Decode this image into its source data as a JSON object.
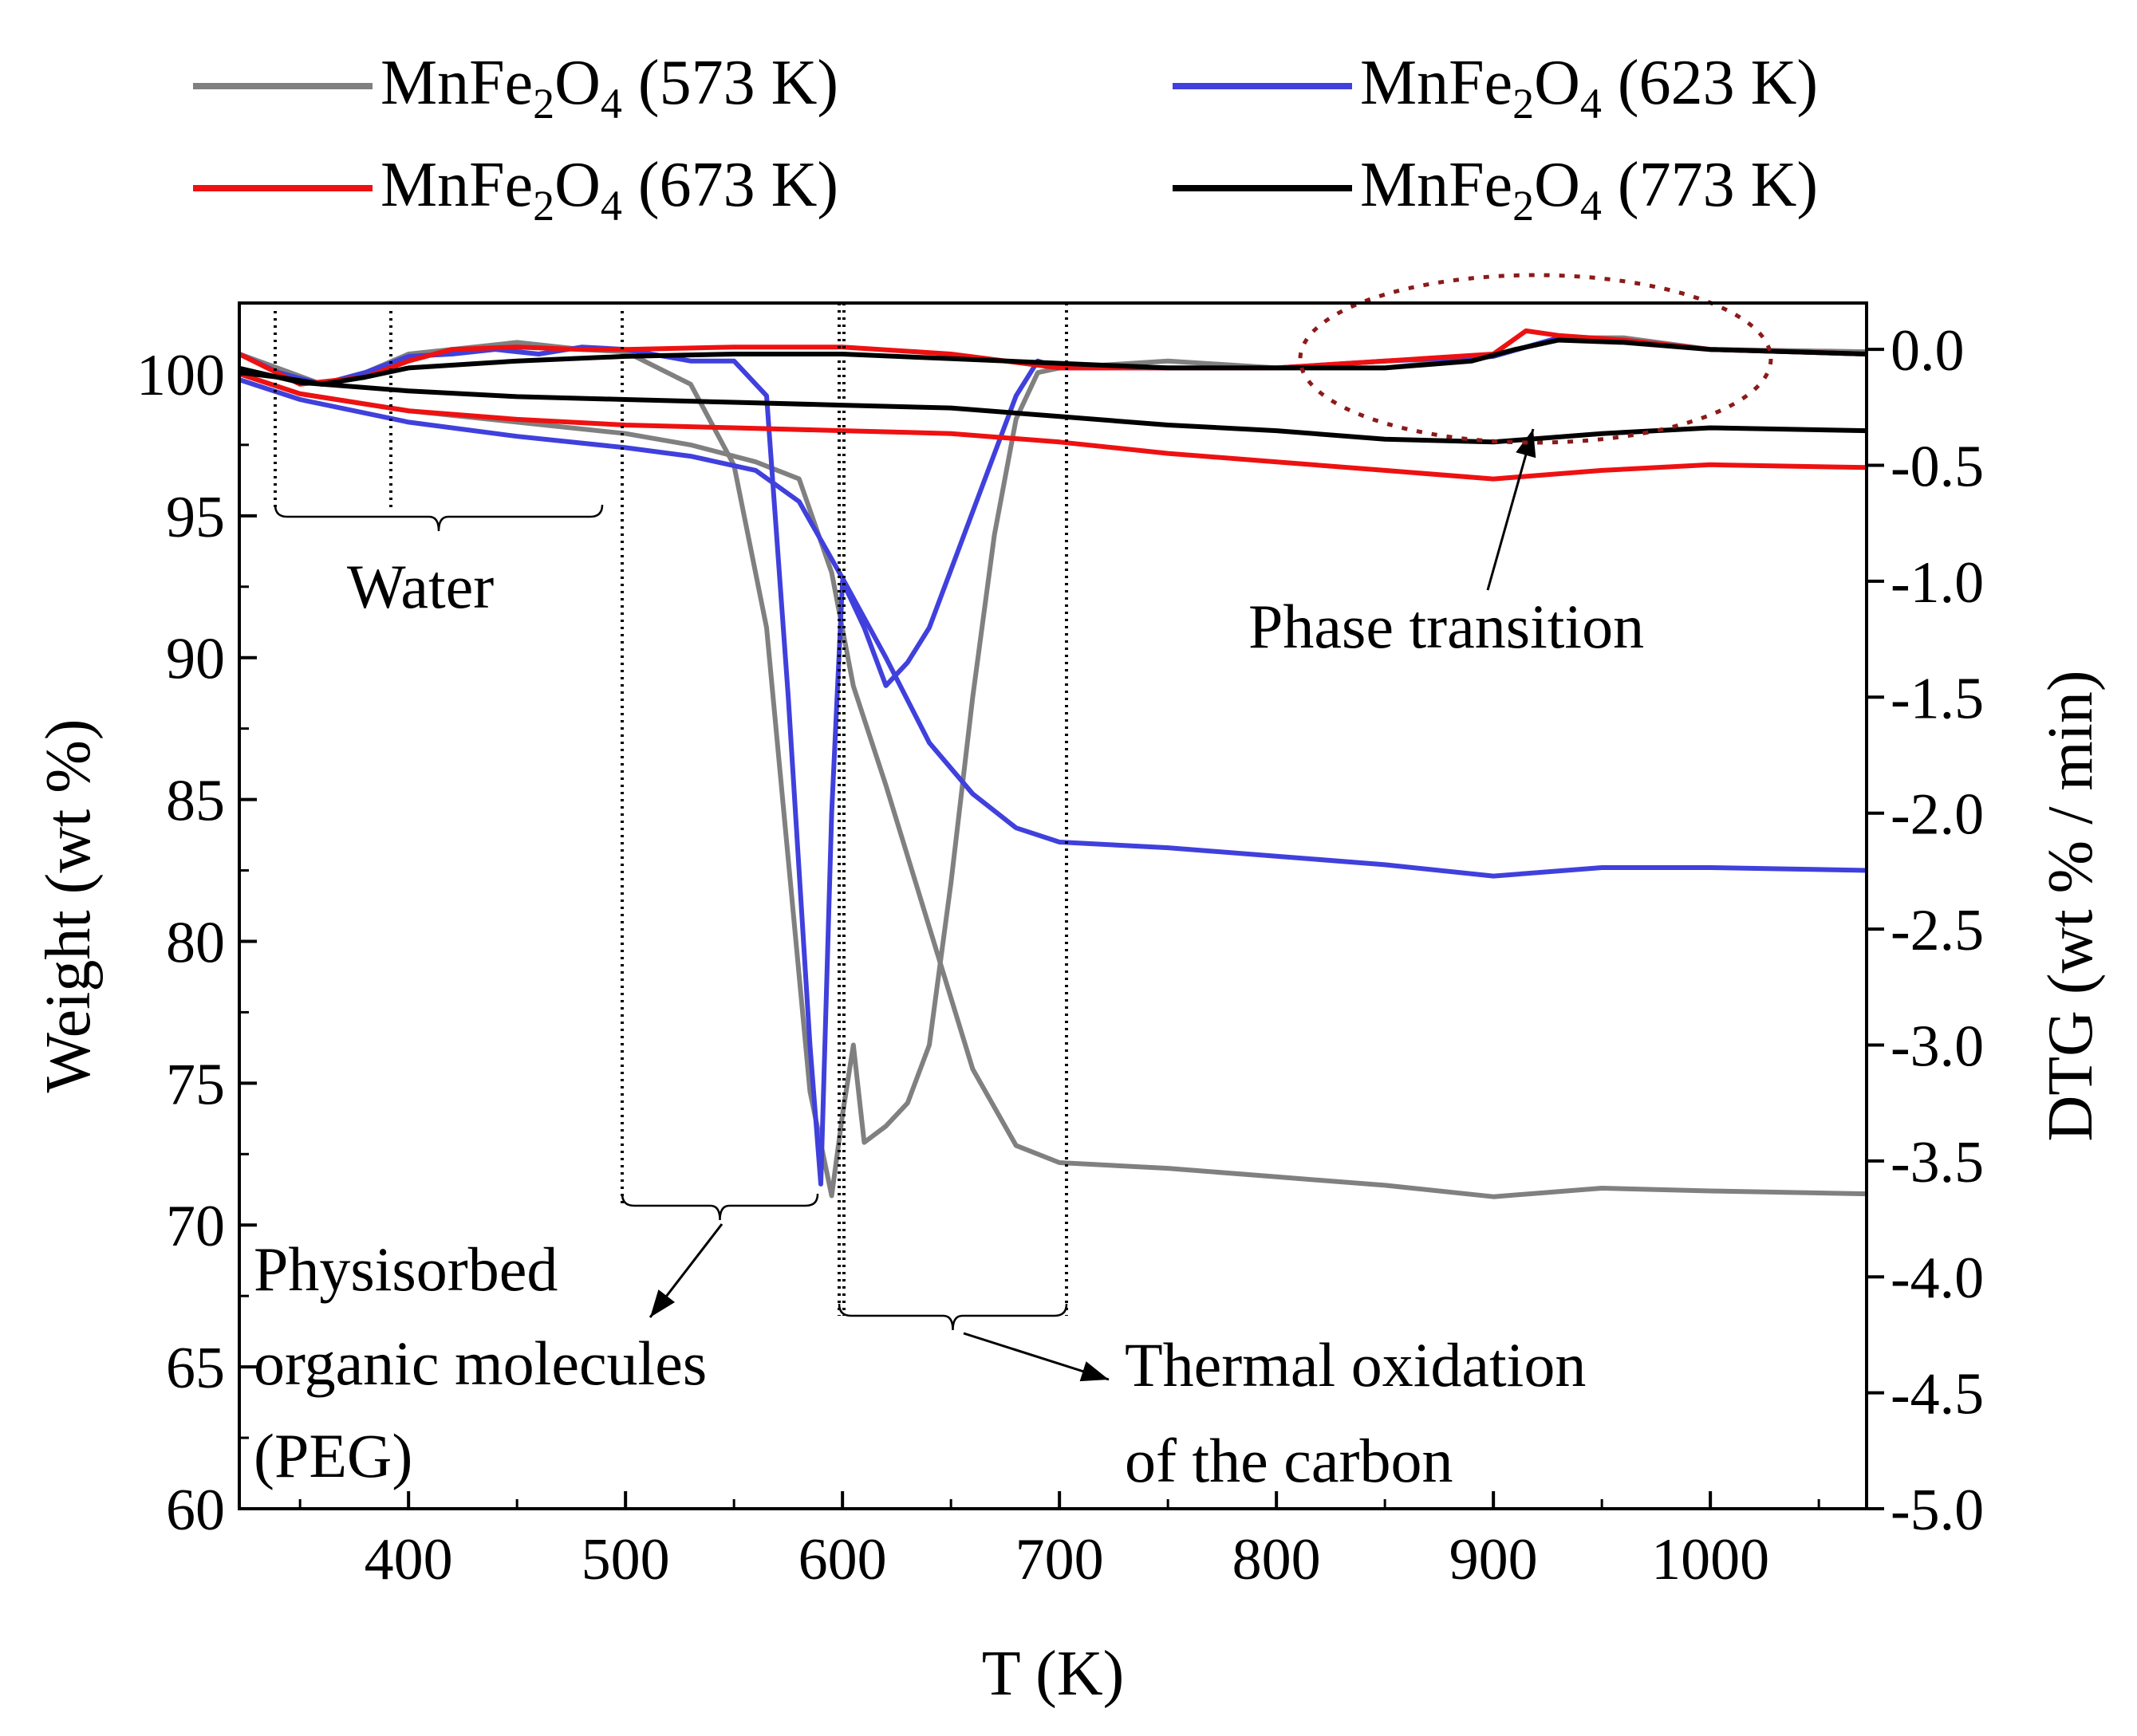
{
  "chart_data": {
    "type": "line",
    "xlabel": "T (K)",
    "ylabel_left": "Weight (wt %)",
    "ylabel_right": "DTG (wt % / min)",
    "xlim": [
      322,
      1072
    ],
    "ylim_left": [
      60,
      102.5
    ],
    "ylim_right": [
      -5.0,
      0.2
    ],
    "x_ticks": [
      400,
      500,
      600,
      700,
      800,
      900,
      1000
    ],
    "y_left_ticks": [
      60,
      65,
      70,
      75,
      80,
      85,
      90,
      95,
      100
    ],
    "y_right_ticks": [
      -5.0,
      -4.5,
      -4.0,
      -3.5,
      -3.0,
      -2.5,
      -2.0,
      -1.5,
      -1.0,
      -0.5,
      0.0
    ],
    "y_right_tick_labels": [
      "-5.0",
      "-4.5",
      "-4.0",
      "-3.5",
      "-3.0",
      "-2.5",
      "-2.0",
      "-1.5",
      "-1.0",
      "-0.5",
      "0.0"
    ],
    "grid": false,
    "legend_position": "top",
    "series": [
      {
        "id": "s573",
        "name_prefix": "MnFe",
        "sub1": "2",
        "name_mid": "O",
        "sub2": "4",
        "name_suffix": " (573 K)",
        "color": "#808080",
        "weight": [
          [
            322,
            100
          ],
          [
            350,
            99.3
          ],
          [
            400,
            98.7
          ],
          [
            450,
            98.3
          ],
          [
            500,
            97.9
          ],
          [
            530,
            97.5
          ],
          [
            560,
            96.9
          ],
          [
            580,
            96.3
          ],
          [
            595,
            93.0
          ],
          [
            605,
            89.0
          ],
          [
            620,
            85.5
          ],
          [
            640,
            80.5
          ],
          [
            660,
            75.5
          ],
          [
            680,
            72.8
          ],
          [
            700,
            72.2
          ],
          [
            750,
            72.0
          ],
          [
            800,
            71.7
          ],
          [
            850,
            71.4
          ],
          [
            900,
            71.0
          ],
          [
            950,
            71.3
          ],
          [
            1000,
            71.2
          ],
          [
            1072,
            71.1
          ]
        ],
        "dtg": [
          [
            322,
            -0.02
          ],
          [
            360,
            -0.15
          ],
          [
            380,
            -0.1
          ],
          [
            400,
            -0.02
          ],
          [
            450,
            0.03
          ],
          [
            480,
            0.0
          ],
          [
            500,
            -0.01
          ],
          [
            530,
            -0.15
          ],
          [
            550,
            -0.5
          ],
          [
            565,
            -1.2
          ],
          [
            575,
            -2.2
          ],
          [
            585,
            -3.2
          ],
          [
            595,
            -3.65
          ],
          [
            600,
            -3.3
          ],
          [
            605,
            -3.0
          ],
          [
            610,
            -3.42
          ],
          [
            620,
            -3.35
          ],
          [
            630,
            -3.25
          ],
          [
            640,
            -3.0
          ],
          [
            650,
            -2.3
          ],
          [
            660,
            -1.5
          ],
          [
            670,
            -0.8
          ],
          [
            680,
            -0.3
          ],
          [
            690,
            -0.1
          ],
          [
            700,
            -0.08
          ],
          [
            750,
            -0.05
          ],
          [
            800,
            -0.08
          ],
          [
            850,
            -0.08
          ],
          [
            880,
            -0.05
          ],
          [
            900,
            -0.03
          ],
          [
            930,
            0.05
          ],
          [
            960,
            0.05
          ],
          [
            1000,
            0.0
          ],
          [
            1072,
            -0.01
          ]
        ]
      },
      {
        "id": "s623",
        "name_prefix": "MnFe",
        "sub1": "2",
        "name_mid": "O",
        "sub2": "4",
        "name_suffix": " (623 K)",
        "color": "#4040dd",
        "weight": [
          [
            322,
            99.8
          ],
          [
            350,
            99.1
          ],
          [
            400,
            98.3
          ],
          [
            450,
            97.8
          ],
          [
            500,
            97.4
          ],
          [
            530,
            97.1
          ],
          [
            560,
            96.6
          ],
          [
            580,
            95.5
          ],
          [
            600,
            92.8
          ],
          [
            620,
            90.0
          ],
          [
            640,
            87.0
          ],
          [
            660,
            85.2
          ],
          [
            680,
            84.0
          ],
          [
            700,
            83.5
          ],
          [
            750,
            83.3
          ],
          [
            800,
            83.0
          ],
          [
            850,
            82.7
          ],
          [
            900,
            82.3
          ],
          [
            950,
            82.6
          ],
          [
            1000,
            82.6
          ],
          [
            1072,
            82.5
          ]
        ],
        "dtg": [
          [
            322,
            -0.02
          ],
          [
            340,
            -0.1
          ],
          [
            360,
            -0.15
          ],
          [
            380,
            -0.1
          ],
          [
            400,
            -0.03
          ],
          [
            420,
            -0.02
          ],
          [
            440,
            0.0
          ],
          [
            460,
            -0.02
          ],
          [
            480,
            0.01
          ],
          [
            500,
            0.0
          ],
          [
            530,
            -0.05
          ],
          [
            550,
            -0.05
          ],
          [
            565,
            -0.2
          ],
          [
            575,
            -1.5
          ],
          [
            585,
            -3.0
          ],
          [
            590,
            -3.6
          ],
          [
            595,
            -2.0
          ],
          [
            600,
            -1.0
          ],
          [
            610,
            -1.2
          ],
          [
            620,
            -1.45
          ],
          [
            630,
            -1.35
          ],
          [
            640,
            -1.2
          ],
          [
            650,
            -0.95
          ],
          [
            660,
            -0.7
          ],
          [
            670,
            -0.45
          ],
          [
            680,
            -0.2
          ],
          [
            690,
            -0.05
          ],
          [
            700,
            -0.08
          ],
          [
            750,
            -0.08
          ],
          [
            800,
            -0.08
          ],
          [
            850,
            -0.05
          ],
          [
            900,
            -0.03
          ],
          [
            930,
            0.05
          ],
          [
            960,
            0.04
          ],
          [
            1000,
            0.0
          ],
          [
            1072,
            -0.02
          ]
        ]
      },
      {
        "id": "s673",
        "name_prefix": "MnFe",
        "sub1": "2",
        "name_mid": "O",
        "sub2": "4",
        "name_suffix": " (673 K)",
        "color": "#ee1111",
        "weight": [
          [
            322,
            100
          ],
          [
            350,
            99.3
          ],
          [
            400,
            98.7
          ],
          [
            450,
            98.4
          ],
          [
            500,
            98.2
          ],
          [
            550,
            98.1
          ],
          [
            600,
            98.0
          ],
          [
            650,
            97.9
          ],
          [
            700,
            97.6
          ],
          [
            750,
            97.2
          ],
          [
            800,
            96.9
          ],
          [
            850,
            96.6
          ],
          [
            900,
            96.3
          ],
          [
            950,
            96.6
          ],
          [
            1000,
            96.8
          ],
          [
            1072,
            96.7
          ]
        ],
        "dtg": [
          [
            322,
            -0.02
          ],
          [
            350,
            -0.15
          ],
          [
            380,
            -0.12
          ],
          [
            400,
            -0.05
          ],
          [
            420,
            0.0
          ],
          [
            450,
            0.01
          ],
          [
            480,
            0.0
          ],
          [
            500,
            0.0
          ],
          [
            550,
            0.01
          ],
          [
            600,
            0.01
          ],
          [
            650,
            -0.02
          ],
          [
            700,
            -0.08
          ],
          [
            750,
            -0.08
          ],
          [
            800,
            -0.08
          ],
          [
            850,
            -0.05
          ],
          [
            900,
            -0.02
          ],
          [
            915,
            0.08
          ],
          [
            930,
            0.06
          ],
          [
            960,
            0.04
          ],
          [
            1000,
            0.0
          ],
          [
            1072,
            -0.02
          ]
        ]
      },
      {
        "id": "s773",
        "name_prefix": "MnFe",
        "sub1": "2",
        "name_mid": "O",
        "sub2": "4",
        "name_suffix": " (773 K)",
        "color": "#000000",
        "weight": [
          [
            322,
            100.2
          ],
          [
            350,
            99.7
          ],
          [
            400,
            99.4
          ],
          [
            450,
            99.2
          ],
          [
            500,
            99.1
          ],
          [
            550,
            99.0
          ],
          [
            600,
            98.9
          ],
          [
            650,
            98.8
          ],
          [
            700,
            98.5
          ],
          [
            750,
            98.2
          ],
          [
            800,
            98.0
          ],
          [
            850,
            97.7
          ],
          [
            900,
            97.6
          ],
          [
            950,
            97.9
          ],
          [
            1000,
            98.1
          ],
          [
            1072,
            98.0
          ]
        ],
        "dtg": [
          [
            322,
            -0.1
          ],
          [
            340,
            -0.12
          ],
          [
            360,
            -0.15
          ],
          [
            380,
            -0.12
          ],
          [
            400,
            -0.08
          ],
          [
            450,
            -0.05
          ],
          [
            500,
            -0.03
          ],
          [
            550,
            -0.02
          ],
          [
            600,
            -0.02
          ],
          [
            650,
            -0.04
          ],
          [
            700,
            -0.06
          ],
          [
            750,
            -0.08
          ],
          [
            800,
            -0.08
          ],
          [
            850,
            -0.08
          ],
          [
            890,
            -0.05
          ],
          [
            910,
            0.0
          ],
          [
            930,
            0.04
          ],
          [
            960,
            0.03
          ],
          [
            1000,
            0.0
          ],
          [
            1072,
            -0.02
          ]
        ]
      }
    ],
    "annotations": {
      "water": "Water",
      "peg_line1": "Physisorbed",
      "peg_line2": "organic molecules",
      "peg_line3": "(PEG)",
      "oxidation_line1": "Thermal oxidation",
      "oxidation_line2": "of the carbon",
      "phase": "Phase transition"
    }
  }
}
